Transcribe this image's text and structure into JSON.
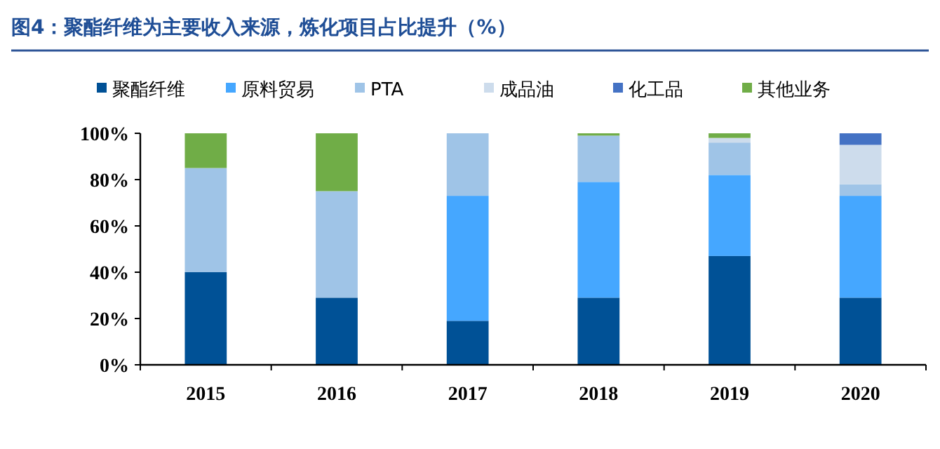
{
  "chart_data": {
    "type": "bar",
    "stacked": true,
    "title": "图4：聚酯纤维为主要收入来源，炼化项目占比提升（%）",
    "categories": [
      "2015",
      "2016",
      "2017",
      "2018",
      "2019",
      "2020"
    ],
    "series": [
      {
        "name": "聚酯纤维",
        "color": "#005196",
        "values": [
          40,
          29,
          19,
          29,
          47,
          29
        ]
      },
      {
        "name": "原料贸易",
        "color": "#45a7ff",
        "values": [
          0,
          0,
          54,
          50,
          35,
          44
        ]
      },
      {
        "name": "PTA",
        "color": "#9fc4e7",
        "values": [
          45,
          46,
          27,
          20,
          14,
          5
        ]
      },
      {
        "name": "成品油",
        "color": "#cddcec",
        "values": [
          0,
          0,
          0,
          0,
          2,
          17
        ]
      },
      {
        "name": "化工品",
        "color": "#4472c4",
        "values": [
          0,
          0,
          0,
          0,
          0,
          5
        ]
      },
      {
        "name": "其他业务",
        "color": "#70ad47",
        "values": [
          15,
          25,
          0,
          1,
          2,
          0
        ]
      }
    ],
    "ylim": [
      0,
      100
    ],
    "yticks": [
      {
        "value": 0,
        "label": "0%"
      },
      {
        "value": 20,
        "label": "20%"
      },
      {
        "value": 40,
        "label": "40%"
      },
      {
        "value": 60,
        "label": "60%"
      },
      {
        "value": 80,
        "label": "80%"
      },
      {
        "value": 100,
        "label": "100%"
      }
    ],
    "grid": false,
    "legend": "top"
  }
}
